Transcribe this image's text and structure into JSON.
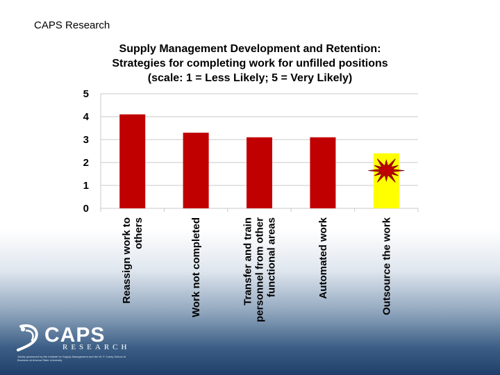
{
  "header": {
    "org": "CAPS Research"
  },
  "chart_data": {
    "type": "bar",
    "title_lines": [
      "Supply Management Development and Retention:",
      "Strategies for completing work for unfilled positions",
      "(scale: 1 = Less Likely; 5 = Very Likely)"
    ],
    "categories": [
      [
        "Reassign work to",
        "others"
      ],
      [
        "Work not completed"
      ],
      [
        "Transfer and train",
        "personnel from other",
        "functional areas"
      ],
      [
        "Automated work"
      ],
      [
        "Outsource the work"
      ]
    ],
    "values": [
      4.1,
      3.3,
      3.1,
      3.1,
      2.4
    ],
    "bar_colors": [
      "#c00000",
      "#c00000",
      "#c00000",
      "#c00000",
      "#ffff00"
    ],
    "ylim": [
      0,
      5
    ],
    "yticks": [
      "0",
      "1",
      "2",
      "3",
      "4",
      "5"
    ],
    "grid": true,
    "annotation": {
      "type": "starburst",
      "category_index": 4,
      "value": 1.65,
      "color": "#c00000"
    }
  },
  "logo": {
    "name": "CAPS",
    "sub": "RESEARCH",
    "fine_print": "Jointly sponsored by the Institute for Supply Management and the W. P. Carey School of Business at Arizona State University"
  }
}
